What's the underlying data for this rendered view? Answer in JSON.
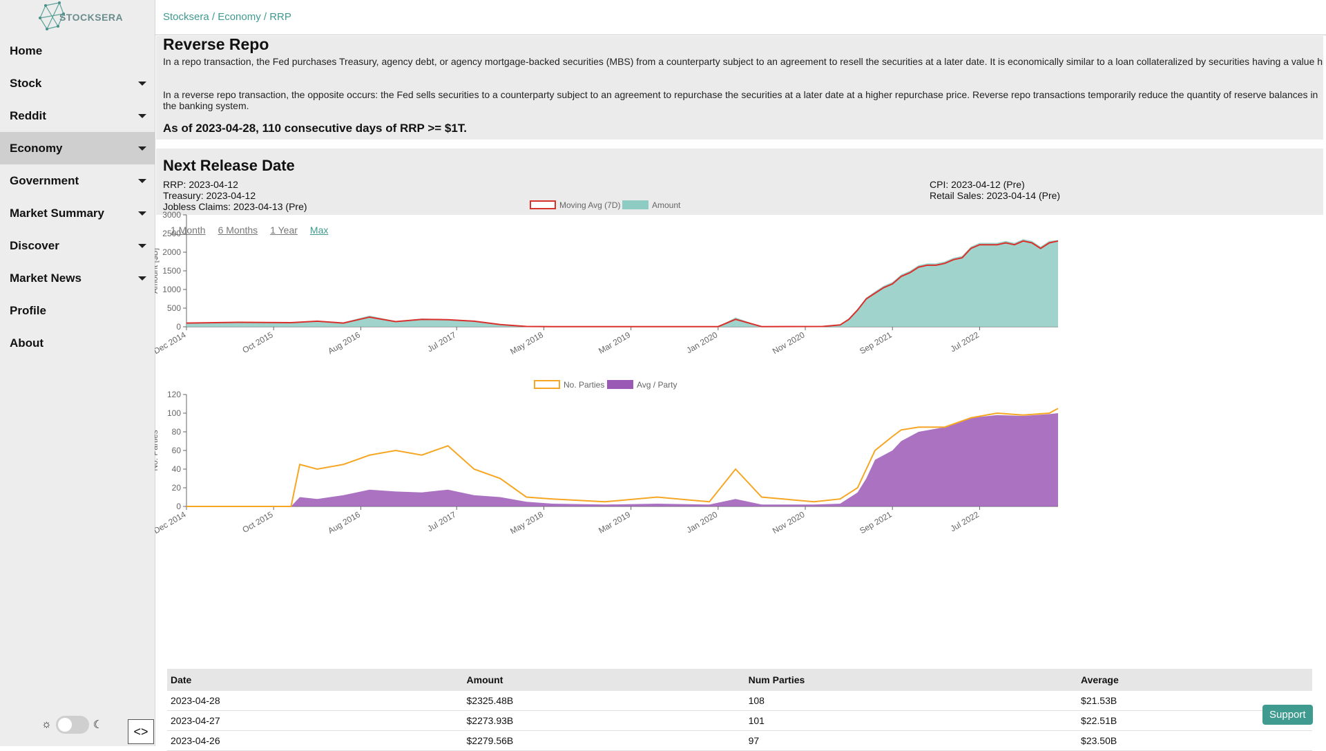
{
  "app": {
    "logo_text": "STOCKSERA"
  },
  "breadcrumb": "Stocksera / Economy / RRP",
  "sidebar": {
    "items": [
      {
        "label": "Home",
        "dropdown": false,
        "active": false
      },
      {
        "label": "Stock",
        "dropdown": true,
        "active": false
      },
      {
        "label": "Reddit",
        "dropdown": true,
        "active": false
      },
      {
        "label": "Economy",
        "dropdown": true,
        "active": true
      },
      {
        "label": "Government",
        "dropdown": true,
        "active": false
      },
      {
        "label": "Market Summary",
        "dropdown": true,
        "active": false
      },
      {
        "label": "Discover",
        "dropdown": true,
        "active": false
      },
      {
        "label": "Market News",
        "dropdown": true,
        "active": false
      },
      {
        "label": "Profile",
        "dropdown": false,
        "active": false
      },
      {
        "label": "About",
        "dropdown": false,
        "active": false
      }
    ],
    "theme_light_icon": "sun-icon",
    "theme_dark_icon": "moon-icon",
    "collapse_icon": "code-brackets-icon"
  },
  "intro": {
    "title": "Reverse Repo",
    "paragraph1": "In a repo transaction, the Fed purchases Treasury, agency debt, or agency mortgage-backed securities (MBS) from a counterparty subject to an agreement to resell the securities at a later date. It is economically similar to a loan collateralized by securities having a value higher than the loan to protect the Fed against market and credit risk. Repo transactions temporarily increase the quantity of reserve balances in the banking system.",
    "paragraph2": "In a reverse repo transaction, the opposite occurs: the Fed sells securities to a counterparty subject to an agreement to repurchase the securities at a later date at a higher repurchase price. Reverse repo transactions temporarily reduce the quantity of reserve balances in the banking system.",
    "streak": "As of 2023-04-28, 110 consecutive days of RRP >= $1T."
  },
  "release": {
    "title": "Next Release Date",
    "rrp": "RRP: 2023-04-12",
    "treasury": "Treasury: 2023-04-12",
    "jobless": "Jobless Claims: 2023-04-13 (Pre)",
    "cpi": "CPI: 2023-04-12 (Pre)",
    "retail": "Retail Sales: 2023-04-14 (Pre)"
  },
  "ranges": {
    "items": [
      "1 Month",
      "6 Months",
      "1 Year",
      "Max"
    ],
    "active": "Max"
  },
  "colors": {
    "accent": "#3f9a8f",
    "moving_avg": "#d9302c",
    "amount": "#8ecbc2",
    "parties": "#f5a623",
    "avg_party": "#9b59b6"
  },
  "chart_data": [
    {
      "type": "area",
      "legend": [
        "Moving Avg (7D)",
        "Amount"
      ],
      "ylabel": "Amount [$B]",
      "ylim": [
        0,
        3000
      ],
      "yticks": [
        0,
        500,
        1000,
        1500,
        2000,
        2500,
        3000
      ],
      "xticks": [
        "Dec 2014",
        "Oct 2015",
        "Aug 2016",
        "Jul 2017",
        "May 2018",
        "Mar 2019",
        "Jan 2020",
        "Nov 2020",
        "Sep 2021",
        "Jul 2022"
      ],
      "series": [
        {
          "name": "Moving Avg (7D)",
          "x": [
            "2014-12",
            "2015-06",
            "2015-12",
            "2016-03",
            "2016-06",
            "2016-09",
            "2016-12",
            "2017-03",
            "2017-06",
            "2017-09",
            "2017-12",
            "2018-03",
            "2018-06",
            "2019-01",
            "2019-06",
            "2020-01",
            "2020-03",
            "2020-06",
            "2021-01",
            "2021-03",
            "2021-04",
            "2021-05",
            "2021-06",
            "2021-07",
            "2021-08",
            "2021-09",
            "2021-10",
            "2021-11",
            "2021-12",
            "2022-01",
            "2022-02",
            "2022-03",
            "2022-04",
            "2022-05",
            "2022-06",
            "2022-07",
            "2022-08",
            "2022-09",
            "2022-10",
            "2022-11",
            "2022-12",
            "2023-01",
            "2023-02",
            "2023-03",
            "2023-04"
          ],
          "values": [
            100,
            120,
            110,
            150,
            100,
            260,
            140,
            200,
            190,
            150,
            60,
            10,
            5,
            5,
            5,
            5,
            200,
            5,
            10,
            50,
            200,
            450,
            750,
            900,
            1050,
            1150,
            1350,
            1450,
            1600,
            1650,
            1650,
            1700,
            1800,
            1850,
            2100,
            2200,
            2200,
            2200,
            2250,
            2200,
            2300,
            2250,
            2100,
            2250,
            2300
          ]
        },
        {
          "name": "Amount",
          "x": [
            "2014-12",
            "2015-06",
            "2015-12",
            "2016-03",
            "2016-06",
            "2016-09",
            "2016-12",
            "2017-03",
            "2017-06",
            "2017-09",
            "2017-12",
            "2018-03",
            "2018-06",
            "2019-01",
            "2019-06",
            "2020-01",
            "2020-03",
            "2020-06",
            "2021-01",
            "2021-03",
            "2021-04",
            "2021-05",
            "2021-06",
            "2021-07",
            "2021-08",
            "2021-09",
            "2021-10",
            "2021-11",
            "2021-12",
            "2022-01",
            "2022-02",
            "2022-03",
            "2022-04",
            "2022-05",
            "2022-06",
            "2022-07",
            "2022-08",
            "2022-09",
            "2022-10",
            "2022-11",
            "2022-12",
            "2023-01",
            "2023-02",
            "2023-03",
            "2023-04"
          ],
          "values": [
            110,
            130,
            100,
            160,
            120,
            300,
            150,
            220,
            200,
            160,
            70,
            10,
            5,
            5,
            5,
            5,
            250,
            5,
            10,
            60,
            220,
            480,
            780,
            950,
            1100,
            1200,
            1400,
            1500,
            1650,
            1700,
            1700,
            1750,
            1850,
            1900,
            2150,
            2250,
            2250,
            2250,
            2300,
            2250,
            2350,
            2300,
            2150,
            2300,
            2325
          ]
        }
      ]
    },
    {
      "type": "line",
      "legend": [
        "No. Parties",
        "Avg / Party"
      ],
      "ylabel": "No. Parties",
      "ylim": [
        0,
        120
      ],
      "yticks": [
        0,
        20,
        40,
        60,
        80,
        100,
        120
      ],
      "xticks": [
        "Dec 2014",
        "Oct 2015",
        "Aug 2016",
        "Jul 2017",
        "May 2018",
        "Mar 2019",
        "Jan 2020",
        "Nov 2020",
        "Sep 2021",
        "Jul 2022"
      ],
      "series": [
        {
          "name": "No. Parties",
          "x": [
            "2014-12",
            "2015-06",
            "2015-12",
            "2016-01",
            "2016-03",
            "2016-06",
            "2016-09",
            "2016-12",
            "2017-03",
            "2017-06",
            "2017-09",
            "2017-12",
            "2018-03",
            "2018-06",
            "2018-12",
            "2019-06",
            "2019-12",
            "2020-03",
            "2020-06",
            "2020-12",
            "2021-03",
            "2021-05",
            "2021-06",
            "2021-07",
            "2021-09",
            "2021-10",
            "2021-12",
            "2022-03",
            "2022-06",
            "2022-09",
            "2022-12",
            "2023-03",
            "2023-04"
          ],
          "values": [
            0,
            0,
            0,
            45,
            40,
            45,
            55,
            60,
            55,
            65,
            40,
            30,
            10,
            8,
            5,
            10,
            5,
            40,
            10,
            5,
            8,
            20,
            40,
            60,
            75,
            82,
            85,
            85,
            95,
            100,
            98,
            100,
            105
          ]
        },
        {
          "name": "Avg / Party",
          "x": [
            "2014-12",
            "2015-06",
            "2015-12",
            "2016-01",
            "2016-03",
            "2016-06",
            "2016-09",
            "2016-12",
            "2017-03",
            "2017-06",
            "2017-09",
            "2017-12",
            "2018-03",
            "2018-06",
            "2018-12",
            "2019-06",
            "2019-12",
            "2020-03",
            "2020-06",
            "2020-12",
            "2021-03",
            "2021-05",
            "2021-06",
            "2021-07",
            "2021-09",
            "2021-10",
            "2021-12",
            "2022-03",
            "2022-06",
            "2022-09",
            "2022-12",
            "2023-03",
            "2023-04"
          ],
          "values": [
            0,
            0,
            0,
            10,
            8,
            12,
            18,
            16,
            15,
            18,
            12,
            10,
            5,
            3,
            2,
            3,
            2,
            8,
            2,
            2,
            3,
            15,
            30,
            50,
            60,
            70,
            80,
            85,
            95,
            98,
            97,
            99,
            100
          ]
        }
      ]
    }
  ],
  "table": {
    "headers": [
      "Date",
      "Amount",
      "Num Parties",
      "Average"
    ],
    "rows": [
      [
        "2023-04-28",
        "$2325.48B",
        "108",
        "$21.53B"
      ],
      [
        "2023-04-27",
        "$2273.93B",
        "101",
        "$22.51B"
      ],
      [
        "2023-04-26",
        "$2279.56B",
        "97",
        "$23.50B"
      ]
    ]
  },
  "support_label": "Support"
}
